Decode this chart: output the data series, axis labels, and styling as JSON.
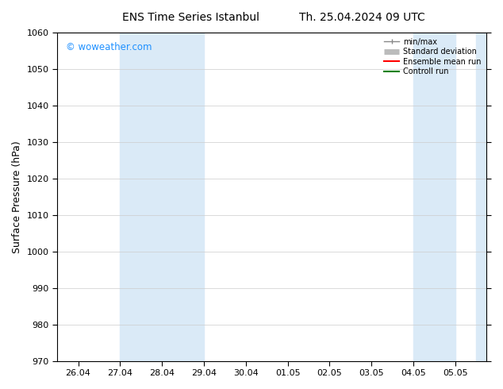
{
  "title_left": "ENS Time Series Istanbul",
  "title_right": "Th. 25.04.2024 09 UTC",
  "ylabel": "Surface Pressure (hPa)",
  "ylim": [
    970,
    1060
  ],
  "yticks": [
    970,
    980,
    990,
    1000,
    1010,
    1020,
    1030,
    1040,
    1050,
    1060
  ],
  "x_tick_labels": [
    "26.04",
    "27.04",
    "28.04",
    "29.04",
    "30.04",
    "01.05",
    "02.05",
    "03.05",
    "04.05",
    "05.05"
  ],
  "x_tick_positions": [
    0,
    1,
    2,
    3,
    4,
    5,
    6,
    7,
    8,
    9
  ],
  "xlim": [
    -0.5,
    9.75
  ],
  "shaded_regions": [
    {
      "x_start": 1,
      "x_end": 3,
      "color": "#daeaf7"
    },
    {
      "x_start": 8,
      "x_end": 9,
      "color": "#daeaf7"
    },
    {
      "x_start": 9.5,
      "x_end": 9.75,
      "color": "#daeaf7"
    }
  ],
  "watermark": "© woweather.com",
  "watermark_color": "#1e90ff",
  "bg_color": "#ffffff",
  "title_fontsize": 10,
  "axis_label_fontsize": 9,
  "tick_fontsize": 8
}
